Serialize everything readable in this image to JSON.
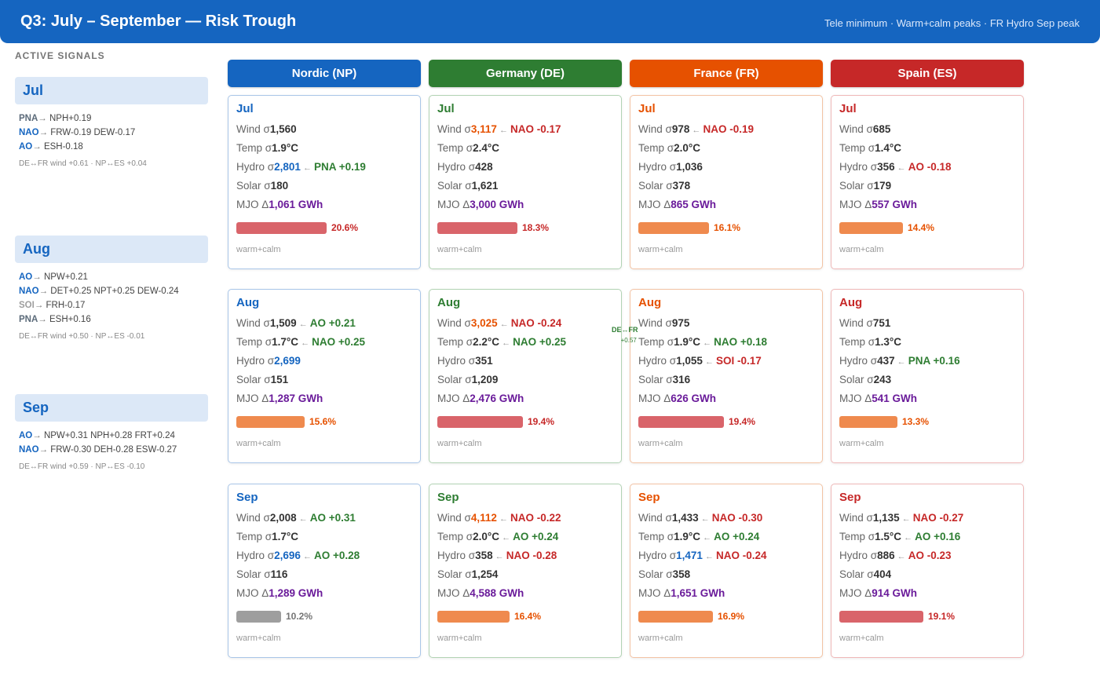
{
  "header": {
    "title": "Q3: July – September — Risk Trough",
    "subtitle": "Tele minimum · Warm+calm peaks · FR Hydro Sep peak"
  },
  "sidebar": {
    "heading": "ACTIVE SIGNALS",
    "months": [
      {
        "label": "Jul",
        "signals": [
          {
            "idx": "PNA",
            "color": "#5c6b7a",
            "effects": "NPH+0.19"
          },
          {
            "idx": "NAO",
            "color": "#1565c0",
            "effects": "FRW-0.19 DEW-0.17"
          },
          {
            "idx": "AO",
            "color": "#1565c0",
            "effects": "ESH-0.18"
          }
        ],
        "cross": "DE↔FR wind +0.61 · NP↔ES +0.04"
      },
      {
        "label": "Aug",
        "signals": [
          {
            "idx": "AO",
            "color": "#1565c0",
            "effects": "NPW+0.21"
          },
          {
            "idx": "NAO",
            "color": "#1565c0",
            "effects": "DET+0.25 NPT+0.25 DEW-0.24"
          },
          {
            "idx": "SOI",
            "color": "#9e9e9e",
            "effects": "FRH-0.17"
          },
          {
            "idx": "PNA",
            "color": "#5c6b7a",
            "effects": "ESH+0.16"
          }
        ],
        "cross": "DE↔FR wind +0.50 · NP↔ES -0.01"
      },
      {
        "label": "Sep",
        "signals": [
          {
            "idx": "AO",
            "color": "#1565c0",
            "effects": "NPW+0.31 NPH+0.28 FRT+0.24"
          },
          {
            "idx": "NAO",
            "color": "#1565c0",
            "effects": "FRW-0.30 DEH-0.28 ESW-0.27"
          }
        ],
        "cross": "DE↔FR wind +0.59 · NP↔ES -0.10"
      }
    ]
  },
  "columns": [
    {
      "label": "Nordic (NP)",
      "color": "#1565c0",
      "border": "#a9c6e8"
    },
    {
      "label": "Germany (DE)",
      "color": "#2e7d32",
      "border": "#b2d3b4"
    },
    {
      "label": "France (FR)",
      "color": "#e65100",
      "border": "#f3c3a4"
    },
    {
      "label": "Spain (ES)",
      "color": "#c62828",
      "border": "#efb8b8"
    }
  ],
  "overlay": {
    "label": "DE↔FR",
    "value": "+0.57"
  },
  "cards": [
    [
      {
        "month": "Jul",
        "wind": "1,560",
        "wind_c": "",
        "wind_s": null,
        "temp": "1.9°C",
        "temp_s": null,
        "hydro": "2,801",
        "hydro_c": "#1565c0",
        "hydro_s": {
          "t": "PNA +0.19",
          "p": true
        },
        "solar": "180",
        "mjo": "1,061 GWh",
        "pct": "20.6%",
        "frac": 0.206,
        "bar": "#d9646a",
        "pct_c": "#c62828",
        "tag": "warm+calm"
      },
      {
        "month": "Aug",
        "wind": "1,509",
        "wind_c": "",
        "wind_s": {
          "t": "AO +0.21",
          "p": true
        },
        "temp": "1.7°C",
        "temp_s": {
          "t": "NAO +0.25",
          "p": true
        },
        "hydro": "2,699",
        "hydro_c": "#1565c0",
        "hydro_s": null,
        "solar": "151",
        "mjo": "1,287 GWh",
        "pct": "15.6%",
        "frac": 0.156,
        "bar": "#ef8a4e",
        "pct_c": "#e65100",
        "tag": "warm+calm"
      },
      {
        "month": "Sep",
        "wind": "2,008",
        "wind_c": "",
        "wind_s": {
          "t": "AO +0.31",
          "p": true
        },
        "temp": "1.7°C",
        "temp_s": null,
        "hydro": "2,696",
        "hydro_c": "#1565c0",
        "hydro_s": {
          "t": "AO +0.28",
          "p": true
        },
        "solar": "116",
        "mjo": "1,289 GWh",
        "pct": "10.2%",
        "frac": 0.102,
        "bar": "#9e9e9e",
        "pct_c": "#757575",
        "tag": "warm+calm"
      }
    ],
    [
      {
        "month": "Jul",
        "wind": "3,117",
        "wind_c": "#e65100",
        "wind_s": {
          "t": "NAO -0.17",
          "p": false
        },
        "temp": "2.4°C",
        "temp_s": null,
        "hydro": "428",
        "hydro_c": "",
        "hydro_s": null,
        "solar": "1,621",
        "mjo": "3,000 GWh",
        "pct": "18.3%",
        "frac": 0.183,
        "bar": "#d9646a",
        "pct_c": "#c62828",
        "tag": "warm+calm"
      },
      {
        "month": "Aug",
        "wind": "3,025",
        "wind_c": "#e65100",
        "wind_s": {
          "t": "NAO -0.24",
          "p": false
        },
        "temp": "2.2°C",
        "temp_s": {
          "t": "NAO +0.25",
          "p": true
        },
        "hydro": "351",
        "hydro_c": "",
        "hydro_s": null,
        "solar": "1,209",
        "mjo": "2,476 GWh",
        "pct": "19.4%",
        "frac": 0.194,
        "bar": "#d9646a",
        "pct_c": "#c62828",
        "tag": "warm+calm"
      },
      {
        "month": "Sep",
        "wind": "4,112",
        "wind_c": "#e65100",
        "wind_s": {
          "t": "NAO -0.22",
          "p": false
        },
        "temp": "2.0°C",
        "temp_s": {
          "t": "AO +0.24",
          "p": true
        },
        "hydro": "358",
        "hydro_c": "",
        "hydro_s": {
          "t": "NAO -0.28",
          "p": false
        },
        "solar": "1,254",
        "mjo": "4,588 GWh",
        "pct": "16.4%",
        "frac": 0.164,
        "bar": "#ef8a4e",
        "pct_c": "#e65100",
        "tag": "warm+calm"
      }
    ],
    [
      {
        "month": "Jul",
        "wind": "978",
        "wind_c": "",
        "wind_s": {
          "t": "NAO -0.19",
          "p": false
        },
        "temp": "2.0°C",
        "temp_s": null,
        "hydro": "1,036",
        "hydro_c": "",
        "hydro_s": null,
        "solar": "378",
        "mjo": "865 GWh",
        "pct": "16.1%",
        "frac": 0.161,
        "bar": "#ef8a4e",
        "pct_c": "#e65100",
        "tag": "warm+calm"
      },
      {
        "month": "Aug",
        "wind": "975",
        "wind_c": "",
        "wind_s": null,
        "temp": "1.9°C",
        "temp_s": {
          "t": "NAO +0.18",
          "p": true
        },
        "hydro": "1,055",
        "hydro_c": "",
        "hydro_s": {
          "t": "SOI -0.17",
          "p": false
        },
        "solar": "316",
        "mjo": "626 GWh",
        "pct": "19.4%",
        "frac": 0.194,
        "bar": "#d9646a",
        "pct_c": "#c62828",
        "tag": "warm+calm"
      },
      {
        "month": "Sep",
        "wind": "1,433",
        "wind_c": "",
        "wind_s": {
          "t": "NAO -0.30",
          "p": false
        },
        "temp": "1.9°C",
        "temp_s": {
          "t": "AO +0.24",
          "p": true
        },
        "hydro": "1,471",
        "hydro_c": "#1565c0",
        "hydro_s": {
          "t": "NAO -0.24",
          "p": false
        },
        "solar": "358",
        "mjo": "1,651 GWh",
        "pct": "16.9%",
        "frac": 0.169,
        "bar": "#ef8a4e",
        "pct_c": "#e65100",
        "tag": "warm+calm"
      }
    ],
    [
      {
        "month": "Jul",
        "wind": "685",
        "wind_c": "",
        "wind_s": null,
        "temp": "1.4°C",
        "temp_s": null,
        "hydro": "356",
        "hydro_c": "",
        "hydro_s": {
          "t": "AO -0.18",
          "p": false
        },
        "solar": "179",
        "mjo": "557 GWh",
        "pct": "14.4%",
        "frac": 0.144,
        "bar": "#ef8a4e",
        "pct_c": "#e65100",
        "tag": "warm+calm"
      },
      {
        "month": "Aug",
        "wind": "751",
        "wind_c": "",
        "wind_s": null,
        "temp": "1.3°C",
        "temp_s": null,
        "hydro": "437",
        "hydro_c": "",
        "hydro_s": {
          "t": "PNA +0.16",
          "p": true
        },
        "solar": "243",
        "mjo": "541 GWh",
        "pct": "13.3%",
        "frac": 0.133,
        "bar": "#ef8a4e",
        "pct_c": "#e65100",
        "tag": "warm+calm"
      },
      {
        "month": "Sep",
        "wind": "1,135",
        "wind_c": "",
        "wind_s": {
          "t": "NAO -0.27",
          "p": false
        },
        "temp": "1.5°C",
        "temp_s": {
          "t": "AO +0.16",
          "p": true
        },
        "hydro": "886",
        "hydro_c": "",
        "hydro_s": {
          "t": "AO -0.23",
          "p": false
        },
        "solar": "404",
        "mjo": "914 GWh",
        "pct": "19.1%",
        "frac": 0.191,
        "bar": "#d9646a",
        "pct_c": "#c62828",
        "tag": "warm+calm"
      }
    ]
  ]
}
